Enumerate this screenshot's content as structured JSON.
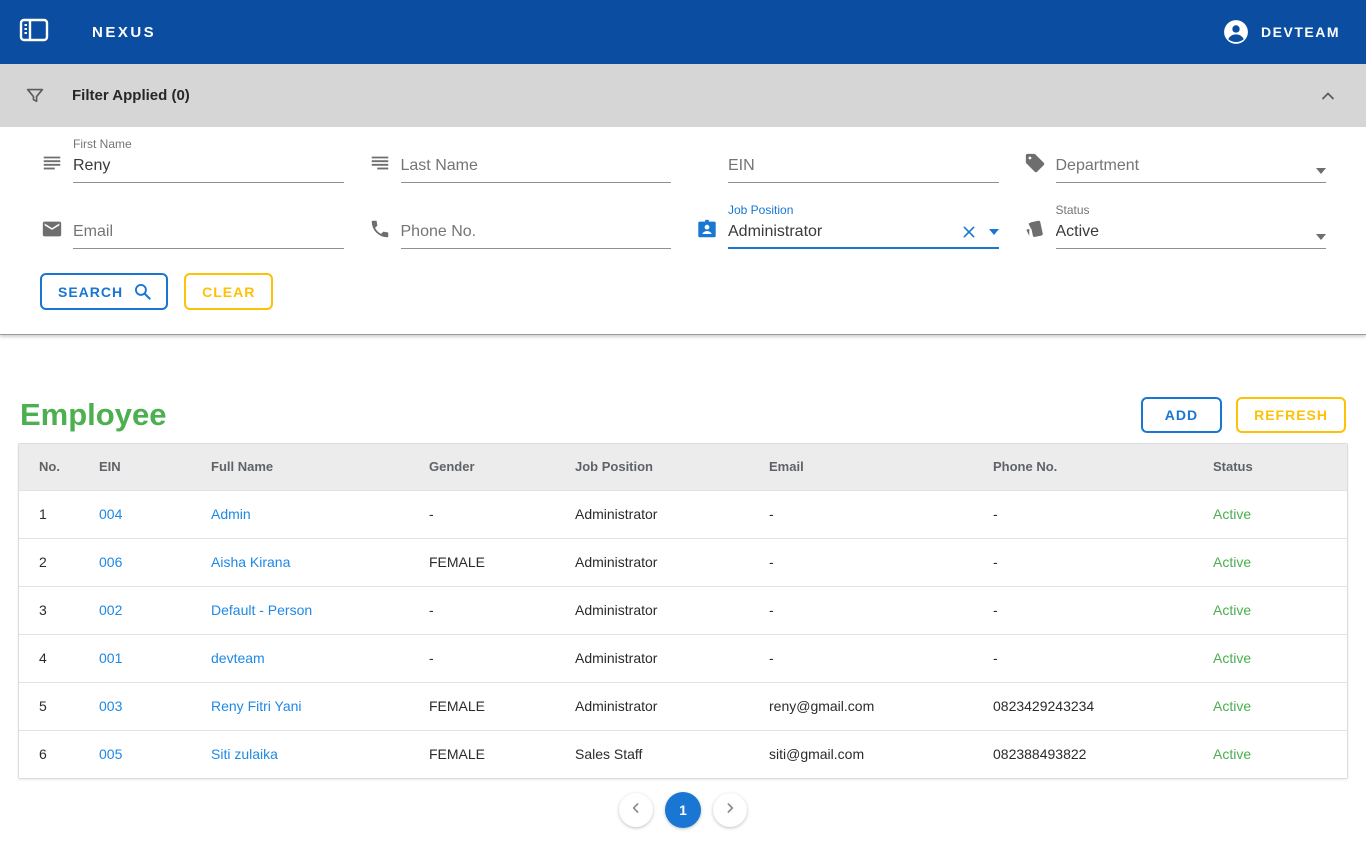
{
  "header": {
    "brand": "NEXUS",
    "user": "DEVTEAM"
  },
  "filter": {
    "title": "Filter Applied (0)",
    "fields": {
      "first_name": {
        "label": "First Name",
        "value": "Reny"
      },
      "last_name": {
        "placeholder": "Last Name"
      },
      "ein": {
        "placeholder": "EIN"
      },
      "department": {
        "placeholder": "Department"
      },
      "email": {
        "placeholder": "Email"
      },
      "phone": {
        "placeholder": "Phone No."
      },
      "job_position": {
        "label": "Job Position",
        "value": "Administrator"
      },
      "status": {
        "label": "Status",
        "value": "Active"
      }
    },
    "buttons": {
      "search": "SEARCH",
      "clear": "CLEAR"
    }
  },
  "main": {
    "title": "Employee",
    "buttons": {
      "add": "ADD",
      "refresh": "REFRESH"
    },
    "table": {
      "columns": [
        "No.",
        "EIN",
        "Full Name",
        "Gender",
        "Job Position",
        "Email",
        "Phone No.",
        "Status"
      ],
      "rows": [
        {
          "no": "1",
          "ein": "004",
          "name": "Admin",
          "gender": "-",
          "job": "Administrator",
          "email": "-",
          "phone": "-",
          "status": "Active"
        },
        {
          "no": "2",
          "ein": "006",
          "name": "Aisha Kirana",
          "gender": "FEMALE",
          "job": "Administrator",
          "email": "-",
          "phone": "-",
          "status": "Active"
        },
        {
          "no": "3",
          "ein": "002",
          "name": "Default - Person",
          "gender": "-",
          "job": "Administrator",
          "email": "-",
          "phone": "-",
          "status": "Active"
        },
        {
          "no": "4",
          "ein": "001",
          "name": "devteam",
          "gender": "-",
          "job": "Administrator",
          "email": "-",
          "phone": "-",
          "status": "Active"
        },
        {
          "no": "5",
          "ein": "003",
          "name": "Reny Fitri Yani",
          "gender": "FEMALE",
          "job": "Administrator",
          "email": "reny@gmail.com",
          "phone": "0823429243234",
          "status": "Active"
        },
        {
          "no": "6",
          "ein": "005",
          "name": "Siti zulaika",
          "gender": "FEMALE",
          "job": "Sales Staff",
          "email": "siti@gmail.com",
          "phone": "082388493822",
          "status": "Active"
        }
      ]
    },
    "pagination": {
      "current": "1"
    }
  },
  "colors": {
    "appbar_blue": "#0b4da1",
    "accent_blue": "#1976d2",
    "link_blue": "#1e88e5",
    "accent_yellow": "#fdc107",
    "success_green": "#4caf50",
    "filter_bar_gray": "#d6d6d6"
  },
  "icons": {
    "sidebar_toggle": "sidebar-toggle-icon",
    "account": "account-circle-icon",
    "filter": "funnel-icon",
    "collapse": "chevron-up-icon",
    "first_name": "text-lines-icon",
    "last_name": "text-lines-icon",
    "department": "tag-icon",
    "email": "envelope-icon",
    "phone": "phone-icon",
    "job_position": "badge-person-icon",
    "status": "style-cards-icon",
    "search": "magnifier-icon",
    "clear_value": "close-x-icon",
    "prev": "chevron-left-icon",
    "next": "chevron-right-icon"
  }
}
